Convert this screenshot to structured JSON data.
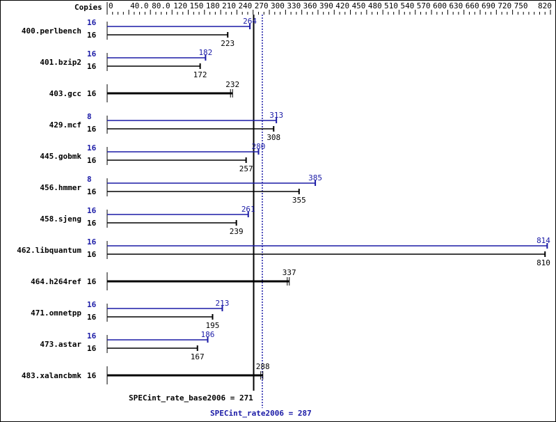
{
  "chart_data": {
    "type": "bar",
    "orientation": "horizontal",
    "axis_label": "Copies",
    "xlim": [
      0,
      820
    ],
    "tick_labels": [
      "0",
      "40.0",
      "80.0",
      "120",
      "150",
      "180",
      "210",
      "240",
      "270",
      "300",
      "330",
      "360",
      "390",
      "420",
      "450",
      "480",
      "510",
      "540",
      "570",
      "600",
      "630",
      "660",
      "690",
      "720",
      "750",
      "820"
    ],
    "tick_values": [
      0,
      40,
      80,
      120,
      150,
      180,
      210,
      240,
      270,
      300,
      330,
      360,
      390,
      420,
      450,
      480,
      510,
      540,
      570,
      600,
      630,
      660,
      690,
      720,
      750,
      820
    ],
    "colors": {
      "peak": "#1a1aa6",
      "base": "#000000"
    },
    "benchmarks": [
      {
        "name": "400.perlbench",
        "peak_copies": "16",
        "base_copies": "16",
        "peak": 264,
        "base": 223
      },
      {
        "name": "401.bzip2",
        "peak_copies": "16",
        "base_copies": "16",
        "peak": 182,
        "base": 172
      },
      {
        "name": "403.gcc",
        "base_copies": "16",
        "base": 232
      },
      {
        "name": "429.mcf",
        "peak_copies": "8",
        "base_copies": "16",
        "peak": 313,
        "base": 308
      },
      {
        "name": "445.gobmk",
        "peak_copies": "16",
        "base_copies": "16",
        "peak": 280,
        "base": 257
      },
      {
        "name": "456.hmmer",
        "peak_copies": "8",
        "base_copies": "16",
        "peak": 385,
        "base": 355
      },
      {
        "name": "458.sjeng",
        "peak_copies": "16",
        "base_copies": "16",
        "peak": 261,
        "base": 239
      },
      {
        "name": "462.libquantum",
        "peak_copies": "16",
        "base_copies": "16",
        "peak": 814,
        "base": 810
      },
      {
        "name": "464.h264ref",
        "base_copies": "16",
        "base": 337
      },
      {
        "name": "471.omnetpp",
        "peak_copies": "16",
        "base_copies": "16",
        "peak": 213,
        "base": 195
      },
      {
        "name": "473.astar",
        "peak_copies": "16",
        "base_copies": "16",
        "peak": 186,
        "base": 167
      },
      {
        "name": "483.xalancbmk",
        "base_copies": "16",
        "base": 288
      }
    ],
    "base_metric": {
      "label": "SPECint_rate_base2006 = 271",
      "value": 271
    },
    "peak_metric": {
      "label": "SPECint_rate2006 = 287",
      "value": 287
    }
  }
}
